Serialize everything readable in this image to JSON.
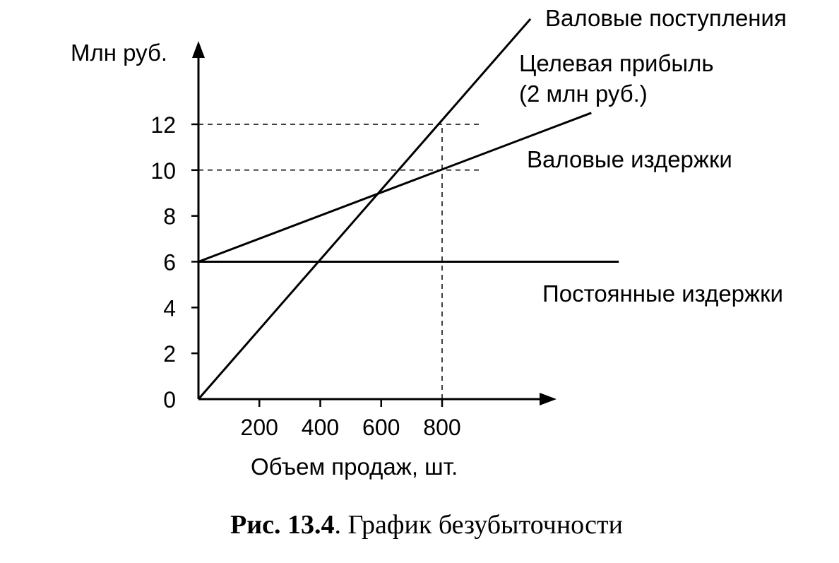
{
  "chart_data": {
    "type": "line",
    "ylabel": "Млн руб.",
    "xlabel": "Объем продаж, шт.",
    "x_ticks": [
      "200",
      "400",
      "600",
      "800"
    ],
    "y_ticks": [
      "0",
      "2",
      "4",
      "6",
      "8",
      "10",
      "12"
    ],
    "xlim": [
      0,
      1150
    ],
    "ylim": [
      0,
      16.5
    ],
    "grid": false,
    "series": [
      {
        "name": "Валовые поступления",
        "x": [
          0,
          1090
        ],
        "y": [
          0,
          16.6
        ]
      },
      {
        "name": "Валовые издержки",
        "x": [
          0,
          1290
        ],
        "y": [
          6,
          12.5
        ]
      },
      {
        "name": "Постоянные издержки",
        "x": [
          0,
          1380
        ],
        "y": [
          6,
          6
        ]
      }
    ],
    "annotations": {
      "target_profit_line1": "Целевая прибыль",
      "target_profit_line2": "(2 млн руб.)",
      "reference_x": 800,
      "reference_y": [
        10,
        12
      ]
    }
  },
  "caption": {
    "number": "Рис. 13.4",
    "text": ". График безубыточности"
  }
}
